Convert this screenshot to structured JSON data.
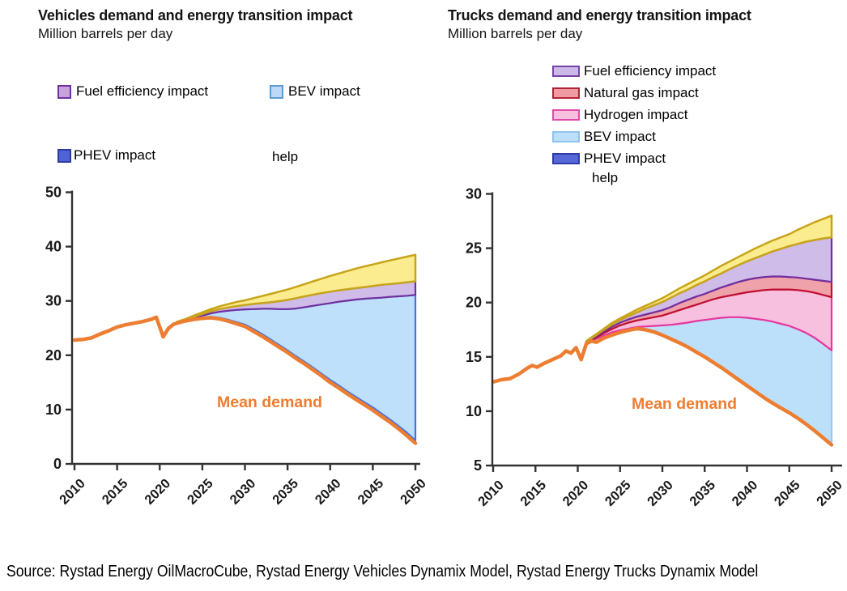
{
  "source": {
    "text": "Source: Rystad Energy OilMacroCube, Rystad Energy Vehicles Dynamix Model, Rystad Energy Trucks Dynamix Model"
  },
  "charts": [
    {
      "title": "Vehicles demand and energy transition impact",
      "subtitle": "Million barrels per day",
      "legend": {
        "items": [
          {
            "label": "Fuel efficiency impact",
            "fill": "#C8A2DC",
            "border": "#7030A0"
          },
          {
            "label": "BEV impact",
            "fill": "#BDD9F7",
            "border": "#5B9BD5"
          },
          {
            "label": "PHEV impact",
            "fill": "#4F63D7",
            "border": "#2D3A9E"
          }
        ],
        "help_label": "help"
      },
      "chart_data": {
        "type": "area",
        "title": "Vehicles demand and energy transition impact",
        "ylabel": "Million barrels per day",
        "x_range": [
          2010,
          2050
        ],
        "ylim": [
          0,
          50
        ],
        "yticks": [
          0,
          10,
          20,
          30,
          40,
          50
        ],
        "xticks": [
          2010,
          2015,
          2020,
          2025,
          2030,
          2035,
          2040,
          2045,
          2050
        ],
        "grid": false,
        "mean": {
          "name": "Mean demand",
          "color": "#ED7D31",
          "x": [
            2010,
            2011,
            2012,
            2013,
            2014,
            2015,
            2016,
            2017,
            2018,
            2019,
            2019.6,
            2020.4,
            2021,
            2021.6,
            2022,
            2023,
            2024,
            2025,
            2026,
            2027,
            2028,
            2029,
            2030,
            2031,
            2032,
            2033,
            2034,
            2035,
            2036,
            2037,
            2038,
            2039,
            2040,
            2041,
            2042,
            2043,
            2044,
            2045,
            2046,
            2047,
            2048,
            2049,
            2050
          ],
          "y": [
            22.8,
            22.9,
            23.2,
            23.9,
            24.5,
            25.2,
            25.6,
            25.9,
            26.2,
            26.6,
            27.0,
            23.4,
            24.9,
            25.7,
            25.9,
            26.3,
            26.6,
            26.8,
            26.9,
            26.7,
            26.3,
            25.8,
            25.3,
            24.4,
            23.5,
            22.5,
            21.5,
            20.5,
            19.4,
            18.4,
            17.3,
            16.2,
            15.0,
            14.0,
            12.9,
            11.9,
            10.9,
            9.9,
            8.8,
            7.7,
            6.5,
            5.2,
            3.8
          ]
        },
        "band_x": [
          2022,
          2023,
          2024,
          2025,
          2026,
          2027,
          2028,
          2029,
          2030,
          2031,
          2032,
          2033,
          2034,
          2035,
          2036,
          2037,
          2038,
          2039,
          2040,
          2041,
          2042,
          2043,
          2044,
          2045,
          2046,
          2047,
          2048,
          2049,
          2050
        ],
        "bands": [
          {
            "name": "PHEV impact",
            "fill": "#4F63D7",
            "stroke": "#3D4CC4",
            "stroke_width": 1.5,
            "top": [
              26.0,
              26.4,
              26.75,
              26.95,
              27.1,
              26.9,
              26.55,
              26.1,
              25.65,
              24.8,
              23.9,
              22.9,
              21.9,
              20.9,
              19.8,
              18.8,
              17.7,
              16.6,
              15.45,
              14.45,
              13.35,
              12.35,
              11.35,
              10.4,
              9.3,
              8.2,
              7.0,
              5.75,
              4.3
            ]
          },
          {
            "name": "BEV impact",
            "fill": "#BEE0FA",
            "stroke": "#4472E1",
            "top": [
              26.05,
              26.45,
              26.9,
              27.3,
              27.7,
              28.0,
              28.2,
              28.35,
              28.45,
              28.5,
              28.55,
              28.55,
              28.5,
              28.5,
              28.6,
              28.85,
              29.1,
              29.35,
              29.6,
              29.85,
              30.05,
              30.25,
              30.4,
              30.5,
              30.6,
              30.75,
              30.85,
              30.95,
              31.1
            ]
          },
          {
            "name": "Fuel efficiency impact",
            "fill": "#D0BCE8",
            "stroke": "#7030A0",
            "top": [
              26.1,
              26.55,
              27.1,
              27.6,
              28.1,
              28.5,
              28.8,
              29.05,
              29.25,
              29.45,
              29.6,
              29.75,
              29.95,
              30.2,
              30.5,
              30.85,
              31.15,
              31.45,
              31.7,
              31.95,
              32.15,
              32.35,
              32.55,
              32.75,
              32.95,
              33.1,
              33.25,
              33.45,
              33.6
            ]
          },
          {
            "name": "unlabeled yellow band",
            "fill": "#FAEC8F",
            "stroke": "#C8A419",
            "stroke_width": 2.5,
            "top": [
              26.15,
              26.65,
              27.3,
              27.9,
              28.5,
              29.0,
              29.4,
              29.8,
              30.1,
              30.5,
              30.9,
              31.3,
              31.7,
              32.1,
              32.6,
              33.1,
              33.6,
              34.1,
              34.6,
              35.05,
              35.5,
              35.95,
              36.35,
              36.7,
              37.1,
              37.45,
              37.8,
              38.15,
              38.5
            ]
          }
        ]
      }
    },
    {
      "title": "Trucks demand and energy transition impact",
      "subtitle": "Million barrels per day",
      "legend": {
        "items": [
          {
            "label": "Fuel efficiency impact",
            "fill": "#CDB9E9",
            "border": "#7445A5"
          },
          {
            "label": "Natural gas impact",
            "fill": "#F09BA4",
            "border": "#B02437"
          },
          {
            "label": "Hydrogen impact",
            "fill": "#F7C0DE",
            "border": "#E04DA8"
          },
          {
            "label": "BEV impact",
            "fill": "#BDE0FA",
            "border": "#8FC3ED"
          },
          {
            "label": "PHEV impact",
            "fill": "#5668D8",
            "border": "#2F3BA8"
          }
        ],
        "help_label": "help"
      },
      "chart_data": {
        "type": "area",
        "title": "Trucks demand and energy transition impact",
        "ylabel": "Million barrels per day",
        "x_range": [
          2010,
          2050
        ],
        "ylim": [
          5,
          30
        ],
        "yticks": [
          5,
          10,
          15,
          20,
          25,
          30
        ],
        "xticks": [
          2010,
          2015,
          2020,
          2025,
          2030,
          2035,
          2040,
          2045,
          2050
        ],
        "grid": false,
        "mean": {
          "name": "Mean demand",
          "color": "#ED7D31",
          "x": [
            2010,
            2011,
            2012,
            2013,
            2014,
            2014.6,
            2015.2,
            2016,
            2017,
            2018,
            2018.6,
            2019.2,
            2019.8,
            2020.4,
            2021,
            2021.6,
            2022.2,
            2023,
            2024,
            2025,
            2026,
            2027,
            2028,
            2029,
            2030,
            2031,
            2032,
            2033,
            2034,
            2035,
            2036,
            2037,
            2038,
            2039,
            2040,
            2041,
            2042,
            2043,
            2044,
            2045,
            2046,
            2047,
            2048,
            2049,
            2050
          ],
          "y": [
            12.7,
            12.9,
            13.0,
            13.4,
            13.95,
            14.2,
            14.05,
            14.4,
            14.75,
            15.1,
            15.55,
            15.35,
            15.85,
            14.75,
            16.2,
            16.45,
            16.35,
            16.7,
            17.0,
            17.25,
            17.45,
            17.6,
            17.5,
            17.3,
            17.0,
            16.65,
            16.3,
            15.9,
            15.45,
            15.0,
            14.5,
            14.0,
            13.45,
            12.9,
            12.35,
            11.8,
            11.25,
            10.75,
            10.3,
            9.85,
            9.35,
            8.8,
            8.2,
            7.55,
            6.9
          ]
        },
        "band_x": [
          2021,
          2022,
          2023,
          2024,
          2025,
          2026,
          2027,
          2028,
          2029,
          2030,
          2031,
          2032,
          2033,
          2034,
          2035,
          2036,
          2037,
          2038,
          2039,
          2040,
          2041,
          2042,
          2043,
          2044,
          2045,
          2046,
          2047,
          2048,
          2049,
          2050
        ],
        "bands": [
          {
            "name": "BEV impact",
            "fill": "#BDE0FA",
            "stroke": "#9CC8F0",
            "top": [
              16.25,
              16.6,
              16.95,
              17.25,
              17.45,
              17.6,
              17.75,
              17.8,
              17.85,
              17.9,
              17.95,
              18.05,
              18.15,
              18.3,
              18.4,
              18.5,
              18.6,
              18.65,
              18.65,
              18.6,
              18.5,
              18.4,
              18.25,
              18.05,
              17.85,
              17.55,
              17.2,
              16.75,
              16.2,
              15.6
            ]
          },
          {
            "name": "Hydrogen impact",
            "fill": "#F7C0DE",
            "stroke": "#E8359E",
            "top": [
              16.3,
              16.7,
              17.15,
              17.55,
              17.9,
              18.15,
              18.35,
              18.5,
              18.65,
              18.8,
              19.05,
              19.3,
              19.55,
              19.8,
              20.05,
              20.3,
              20.5,
              20.65,
              20.8,
              20.95,
              21.05,
              21.15,
              21.2,
              21.2,
              21.2,
              21.15,
              21.05,
              20.9,
              20.7,
              20.5
            ]
          },
          {
            "name": "Natural gas impact",
            "fill": "#F0A2AB",
            "stroke": "#C01030",
            "top": [
              16.35,
              16.8,
              17.3,
              17.75,
              18.15,
              18.45,
              18.7,
              18.9,
              19.1,
              19.3,
              19.6,
              19.95,
              20.25,
              20.55,
              20.8,
              21.1,
              21.4,
              21.65,
              21.9,
              22.1,
              22.25,
              22.35,
              22.4,
              22.4,
              22.35,
              22.3,
              22.2,
              22.1,
              22.0,
              21.9
            ]
          },
          {
            "name": "Fuel efficiency impact",
            "fill": "#D0BCE8",
            "stroke": "#7030A0",
            "top": [
              16.4,
              16.9,
              17.45,
              17.95,
              18.4,
              18.75,
              19.1,
              19.45,
              19.75,
              20.05,
              20.45,
              20.85,
              21.2,
              21.6,
              21.95,
              22.35,
              22.7,
              23.1,
              23.45,
              23.8,
              24.1,
              24.4,
              24.7,
              24.95,
              25.2,
              25.4,
              25.6,
              25.75,
              25.9,
              26.0
            ]
          },
          {
            "name": "unlabeled yellow band",
            "fill": "#FAEC8F",
            "stroke": "#C8A419",
            "stroke_width": 2.5,
            "top": [
              16.45,
              17.0,
              17.55,
              18.1,
              18.55,
              18.95,
              19.35,
              19.7,
              20.05,
              20.4,
              20.85,
              21.3,
              21.7,
              22.1,
              22.5,
              22.95,
              23.4,
              23.8,
              24.2,
              24.6,
              25.0,
              25.35,
              25.7,
              26.0,
              26.3,
              26.7,
              27.05,
              27.4,
              27.7,
              28.0
            ]
          }
        ]
      }
    }
  ]
}
